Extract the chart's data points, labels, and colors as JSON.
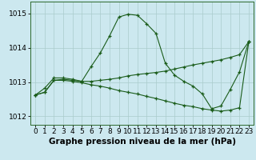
{
  "xlabel": "Graphe pression niveau de la mer (hPa)",
  "xlim": [
    -0.5,
    23.5
  ],
  "ylim": [
    1011.75,
    1015.35
  ],
  "yticks": [
    1012,
    1013,
    1014,
    1015
  ],
  "xticks": [
    0,
    1,
    2,
    3,
    4,
    5,
    6,
    7,
    8,
    9,
    10,
    11,
    12,
    13,
    14,
    15,
    16,
    17,
    18,
    19,
    20,
    21,
    22,
    23
  ],
  "bg_color": "#cce8ef",
  "grid_color": "#aacccc",
  "line_color": "#1a5c1a",
  "line1": [
    1012.62,
    1012.82,
    1013.12,
    1013.12,
    1013.08,
    1013.02,
    1013.45,
    1013.85,
    1014.35,
    1014.9,
    1014.98,
    1014.95,
    1014.7,
    1014.42,
    1013.55,
    1013.2,
    1013.02,
    1012.88,
    1012.65,
    1012.22,
    1012.3,
    1012.78,
    1013.3,
    1014.18
  ],
  "line2": [
    1012.62,
    1012.7,
    1013.05,
    1013.08,
    1013.05,
    1013.02,
    1013.02,
    1013.05,
    1013.08,
    1013.12,
    1013.18,
    1013.22,
    1013.25,
    1013.28,
    1013.32,
    1013.38,
    1013.44,
    1013.5,
    1013.55,
    1013.6,
    1013.65,
    1013.72,
    1013.8,
    1014.18
  ],
  "line3": [
    1012.62,
    1012.7,
    1013.05,
    1013.05,
    1013.02,
    1012.98,
    1012.92,
    1012.88,
    1012.82,
    1012.75,
    1012.7,
    1012.65,
    1012.58,
    1012.52,
    1012.45,
    1012.38,
    1012.32,
    1012.28,
    1012.22,
    1012.18,
    1012.15,
    1012.18,
    1012.25,
    1014.18
  ],
  "font_size_xlabel": 7.5,
  "tick_font_size": 6.5
}
